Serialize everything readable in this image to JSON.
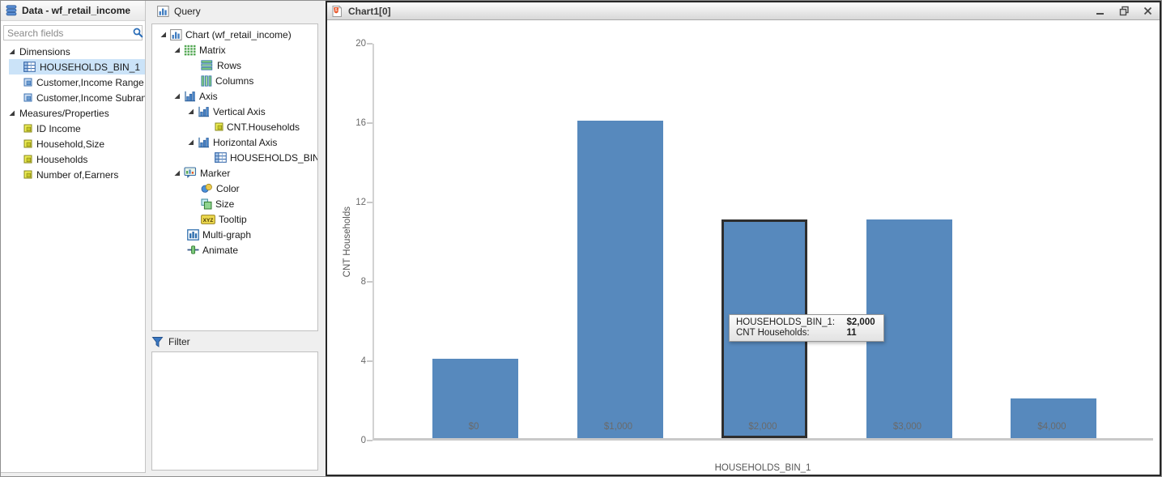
{
  "data_panel": {
    "title": "Data - wf_retail_income",
    "search_placeholder": "Search fields",
    "sections": [
      {
        "label": "Dimensions",
        "items": [
          {
            "label": "HOUSEHOLDS_BIN_1",
            "icon": "dimension-table-icon",
            "selected": true
          },
          {
            "label": "Customer,Income Range",
            "icon": "dimension-field-icon",
            "selected": false
          },
          {
            "label": "Customer,Income Subrange",
            "icon": "dimension-field-icon",
            "selected": false
          }
        ]
      },
      {
        "label": "Measures/Properties",
        "items": [
          {
            "label": "ID Income",
            "icon": "measure-icon",
            "selected": false
          },
          {
            "label": "Household,Size",
            "icon": "measure-icon",
            "selected": false
          },
          {
            "label": "Households",
            "icon": "measure-icon",
            "selected": false
          },
          {
            "label": "Number of,Earners",
            "icon": "measure-icon",
            "selected": false
          }
        ]
      }
    ]
  },
  "query_panel": {
    "title": "Query",
    "filter_label": "Filter",
    "tree": [
      {
        "label": "Chart (wf_retail_income)",
        "depth": 0,
        "icon": "chart-icon",
        "expander": true
      },
      {
        "label": "Matrix",
        "depth": 1,
        "icon": "matrix-icon",
        "expander": true
      },
      {
        "label": "Rows",
        "depth": 2,
        "icon": "rows-icon",
        "expander": false
      },
      {
        "label": "Columns",
        "depth": 2,
        "icon": "columns-icon",
        "expander": false
      },
      {
        "label": "Axis",
        "depth": 1,
        "icon": "axis-icon",
        "expander": true
      },
      {
        "label": "Vertical Axis",
        "depth": 2,
        "icon": "axis-icon",
        "expander": true
      },
      {
        "label": "CNT.Households",
        "depth": 3,
        "icon": "measure-icon",
        "expander": false
      },
      {
        "label": "Horizontal Axis",
        "depth": 2,
        "icon": "axis-icon",
        "expander": true
      },
      {
        "label": "HOUSEHOLDS_BIN_1",
        "depth": 3,
        "icon": "dimension-table-icon",
        "expander": false
      },
      {
        "label": "Marker",
        "depth": 1,
        "icon": "marker-icon",
        "expander": true
      },
      {
        "label": "Color",
        "depth": 2,
        "icon": "color-icon",
        "expander": false
      },
      {
        "label": "Size",
        "depth": 2,
        "icon": "size-icon",
        "expander": false
      },
      {
        "label": "Tooltip",
        "depth": 2,
        "icon": "tooltip-icon",
        "expander": false
      },
      {
        "label": "Multi-graph",
        "depth": 1,
        "icon": "multigraph-icon",
        "expander": false
      },
      {
        "label": "Animate",
        "depth": 1,
        "icon": "animate-icon",
        "expander": false
      }
    ]
  },
  "chart_window": {
    "title": "Chart1[0]",
    "controls": [
      "minimize",
      "restore",
      "close"
    ]
  },
  "chart_data": {
    "type": "bar",
    "title": "",
    "categories": [
      "$0",
      "$1,000",
      "$2,000",
      "$3,000",
      "$4,000"
    ],
    "values": [
      4,
      16,
      11,
      11,
      2
    ],
    "xlabel": "HOUSEHOLDS_BIN_1",
    "ylabel": "CNT Households",
    "ylim": [
      0,
      20
    ],
    "yticks": [
      0,
      4,
      8,
      12,
      16,
      20
    ],
    "grid": false,
    "legend": false,
    "bar_color": "#5789bd",
    "selection_color": "#cbe3f8",
    "highlighted_index": 2,
    "highlight_border_color": "#2e2e2e",
    "tooltip": {
      "rows": [
        {
          "label": "HOUSEHOLDS_BIN_1:",
          "value": "$2,000"
        },
        {
          "label": "CNT Households:",
          "value": "11"
        }
      ]
    }
  }
}
